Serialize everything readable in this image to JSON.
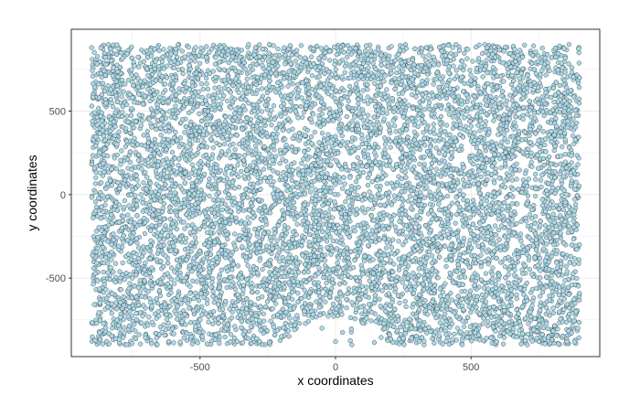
{
  "chart_data": {
    "type": "scatter",
    "title": "",
    "xlabel": "x coordinates",
    "ylabel": "y coordinates",
    "xlim": [
      -975,
      975
    ],
    "ylim": [
      -970,
      990
    ],
    "x_ticks": [
      -500,
      0,
      500
    ],
    "y_ticks": [
      -500,
      0,
      500
    ],
    "x_tick_labels": [
      "-500",
      "0",
      "500"
    ],
    "y_tick_labels": [
      "-500",
      "0",
      "500"
    ],
    "x_minor_ticks": [
      -750,
      -250,
      250,
      750
    ],
    "y_minor_ticks": [
      -750,
      -250,
      250,
      750
    ],
    "grid": true,
    "legend": "none",
    "point_fill": "#add8e6",
    "point_stroke": "#1f2a2e",
    "panel_background": "#ffffff",
    "grid_color": "#ebebeb",
    "border_color": "#333333",
    "point_cloud": {
      "x_range": [
        -900,
        900
      ],
      "y_range": [
        -900,
        900
      ],
      "sparse_region": {
        "x_center": 0,
        "y_bottom": -900,
        "x_halfwidth": 220,
        "y_top": -730
      }
    },
    "sample_points": [
      [
        -900,
        880
      ],
      [
        -600,
        700
      ],
      [
        -300,
        500
      ],
      [
        0,
        300
      ],
      [
        300,
        100
      ],
      [
        600,
        -100
      ],
      [
        900,
        -300
      ],
      [
        -750,
        -500
      ],
      [
        -450,
        -700
      ],
      [
        450,
        -800
      ],
      [
        750,
        -880
      ],
      [
        -100,
        -760
      ],
      [
        100,
        -770
      ],
      [
        -200,
        -850
      ],
      [
        200,
        -840
      ],
      [
        0,
        -880
      ],
      [
        -50,
        -800
      ],
      [
        60,
        -900
      ],
      [
        -280,
        -880
      ],
      [
        280,
        -860
      ]
    ]
  }
}
